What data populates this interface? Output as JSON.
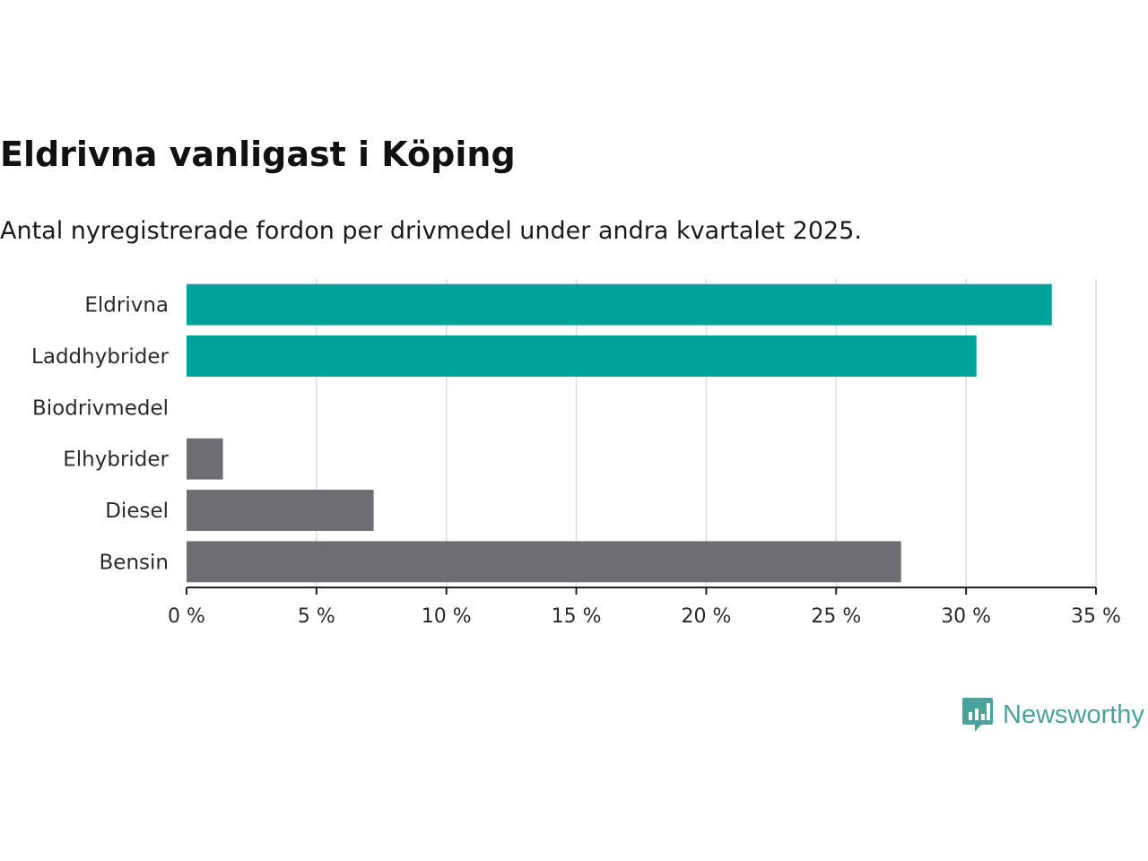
{
  "title": "Eldrivna vanligast i Köping",
  "subtitle": "Antal nyregistrerade fordon per drivmedel under andra kvartalet 2025.",
  "chart_data": {
    "type": "bar",
    "orientation": "horizontal",
    "categories": [
      "Eldrivna",
      "Laddhybrider",
      "Biodrivmedel",
      "Elhybrider",
      "Diesel",
      "Bensin"
    ],
    "values": [
      33.3,
      30.4,
      0,
      1.4,
      7.2,
      27.5
    ],
    "colors": [
      "#00a399",
      "#00a399",
      "#6e6d73",
      "#6e6d73",
      "#6e6d73",
      "#6e6d73"
    ],
    "xlim": [
      0,
      35
    ],
    "xticks": [
      0,
      5,
      10,
      15,
      20,
      25,
      30,
      35
    ],
    "xtick_labels": [
      "0 %",
      "5 %",
      "10 %",
      "15 %",
      "20 %",
      "25 %",
      "30 %",
      "35 %"
    ],
    "grid": true,
    "xlabel": "",
    "ylabel": ""
  },
  "logo": {
    "text": "Newsworthy",
    "icon": "bar-chart-speech-bubble-icon",
    "color": "#4aa39a"
  }
}
